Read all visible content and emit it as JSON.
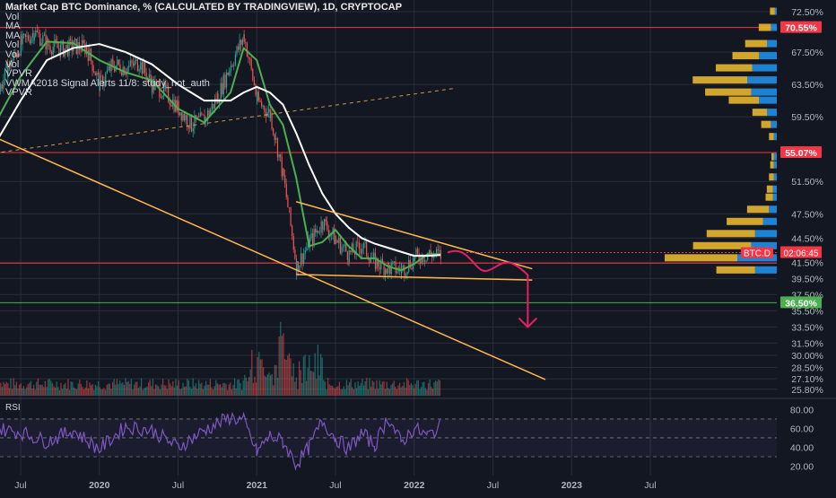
{
  "chart_data": {
    "type": "line",
    "title": "Market Cap BTC Dominance, % (CALCULATED BY TRADINGVIEW), 1D, CRYPTOCAP",
    "legend_rows": [
      "Vol",
      "MA",
      "MA",
      "Vol",
      "Vol",
      "Vol",
      "VPVR",
      "VWMA2018 Signal Alerts 11/8: study_not_auth",
      "VPVR"
    ],
    "price_axis": {
      "ticks": [
        "72.50%",
        "67.50%",
        "63.50%",
        "59.50%",
        "51.50%",
        "47.50%",
        "44.50%",
        "41.50%",
        "39.50%",
        "37.50%",
        "35.50%",
        "33.50%",
        "31.50%",
        "30.00%",
        "28.50%",
        "27.10%",
        "25.80%"
      ],
      "ylim": [
        25.0,
        73.5
      ]
    },
    "time_axis": {
      "labels": [
        "Jul",
        "2020",
        "Jul",
        "2021",
        "Jul",
        "2022",
        "Jul",
        "2023",
        "Jul"
      ]
    },
    "price_badges": [
      {
        "text": "70.55%",
        "value": 70.55,
        "color": "#f23645"
      },
      {
        "text": "55.07%",
        "value": 55.07,
        "color": "#f23645"
      },
      {
        "text": "36.50%",
        "value": 36.5,
        "color": "#4caf50"
      }
    ],
    "last_price_label": {
      "symbol": "BTC.D",
      "countdown": "02:06:45",
      "color": "#f23645"
    },
    "horizontal_levels": [
      {
        "value": 70.55,
        "color": "#f23645"
      },
      {
        "value": 55.07,
        "color": "#f23645"
      },
      {
        "value": 41.4,
        "color": "#f23645"
      },
      {
        "value": 36.5,
        "color": "#4caf50"
      }
    ],
    "series": [
      {
        "kind": "candles",
        "x": [
          "2019-06",
          "2019-07",
          "2019-08",
          "2019-09",
          "2019-10",
          "2019-11",
          "2019-12",
          "2020-01",
          "2020-02",
          "2020-03",
          "2020-04",
          "2020-05",
          "2020-06",
          "2020-07",
          "2020-08",
          "2020-09",
          "2020-10",
          "2020-11",
          "2020-12",
          "2021-01",
          "2021-02",
          "2021-03",
          "2021-04",
          "2021-05",
          "2021-06",
          "2021-07",
          "2021-08",
          "2021-09",
          "2021-10",
          "2021-11",
          "2021-12",
          "2022-01",
          "2022-02",
          "2022-03",
          "2022-04"
        ],
        "close": [
          61.5,
          65.5,
          68.5,
          70.0,
          68.5,
          67.8,
          68.2,
          68.0,
          63.5,
          66.0,
          65.5,
          66.2,
          63.5,
          62.5,
          60.5,
          58.5,
          59.2,
          62.0,
          66.0,
          69.5,
          61.5,
          59.8,
          52.0,
          41.0,
          44.0,
          46.5,
          44.2,
          42.5,
          43.5,
          41.5,
          40.8,
          40.5,
          42.0,
          42.6,
          42.3
        ]
      },
      {
        "kind": "ma-fast",
        "color": "#4caf50",
        "x": [
          "2019-06",
          "2019-08",
          "2019-10",
          "2019-12",
          "2020-02",
          "2020-04",
          "2020-06",
          "2020-08",
          "2020-10",
          "2020-12",
          "2021-01",
          "2021-02",
          "2021-03",
          "2021-04",
          "2021-05",
          "2021-06",
          "2021-07",
          "2021-08",
          "2021-09",
          "2021-10",
          "2021-11",
          "2021-12",
          "2022-01",
          "2022-02",
          "2022-03",
          "2022-04"
        ],
        "values": [
          58.5,
          64.5,
          68.8,
          68.6,
          66.5,
          65.0,
          64.0,
          60.5,
          58.8,
          62.5,
          68.0,
          66.5,
          61.0,
          58.5,
          52.0,
          43.5,
          44.0,
          45.5,
          43.5,
          42.0,
          42.0,
          41.0,
          40.5,
          41.3,
          42.5,
          42.5
        ]
      },
      {
        "kind": "ma-slow",
        "color": "#ffffff",
        "x": [
          "2019-06",
          "2019-08",
          "2019-10",
          "2019-12",
          "2020-02",
          "2020-04",
          "2020-06",
          "2020-08",
          "2020-10",
          "2020-12",
          "2021-01",
          "2021-02",
          "2021-03",
          "2021-04",
          "2021-05",
          "2021-06",
          "2021-07",
          "2021-08",
          "2021-09",
          "2021-10",
          "2021-11",
          "2021-12",
          "2022-01",
          "2022-02",
          "2022-03",
          "2022-04"
        ],
        "values": [
          56.0,
          61.5,
          66.5,
          68.0,
          68.5,
          67.5,
          66.0,
          63.5,
          61.5,
          61.5,
          62.5,
          63.2,
          62.5,
          61.0,
          57.5,
          53.5,
          50.0,
          47.5,
          45.8,
          44.5,
          43.8,
          43.3,
          42.8,
          42.3,
          42.3,
          42.4
        ]
      }
    ],
    "trendlines": [
      {
        "from": [
          "2021-05",
          49.0
        ],
        "to": [
          "2022-11",
          40.7
        ],
        "color": "#ffb74d"
      },
      {
        "from": [
          "2021-05",
          40.0
        ],
        "to": [
          "2022-11",
          39.3
        ],
        "color": "#ffb74d"
      },
      {
        "from": [
          "2019-06",
          57.0
        ],
        "to": [
          "2022-12",
          27.0
        ],
        "color": "#ffb74d"
      },
      {
        "from": [
          "2019-06",
          55.0
        ],
        "to": [
          "2022-05",
          63.0
        ],
        "color": "#ffb74d",
        "dashed": true
      }
    ],
    "projection": {
      "color": "#e91e63",
      "target": [
        "2022-11",
        33.5
      ]
    },
    "volume_profile": {
      "price_bins": [
        72.0,
        70.0,
        68.0,
        66.5,
        65.0,
        63.5,
        62.0,
        61.0,
        59.5,
        58.0,
        56.5,
        54.0,
        53.0,
        51.5,
        50.0,
        49.0,
        47.5,
        46.0,
        44.5,
        43.0,
        41.5,
        40.0
      ],
      "buy": [
        4,
        10,
        18,
        22,
        30,
        45,
        38,
        25,
        12,
        8,
        4,
        2,
        3,
        4,
        5,
        6,
        18,
        30,
        40,
        48,
        60,
        32
      ],
      "sell": [
        2,
        6,
        10,
        18,
        25,
        30,
        26,
        18,
        10,
        6,
        3,
        3,
        3,
        3,
        4,
        4,
        8,
        14,
        22,
        26,
        40,
        22
      ]
    },
    "rsi": {
      "label": "RSI",
      "ticks": [
        "80.00",
        "60.00",
        "40.00",
        "20.00"
      ],
      "ylim": [
        10,
        88
      ],
      "overbought": 70,
      "oversold": 30,
      "x": [
        "2019-06",
        "2019-08",
        "2019-10",
        "2019-12",
        "2020-02",
        "2020-04",
        "2020-06",
        "2020-08",
        "2020-10",
        "2020-12",
        "2021-01",
        "2021-02",
        "2021-03",
        "2021-04",
        "2021-05",
        "2021-06",
        "2021-07",
        "2021-08",
        "2021-09",
        "2021-10",
        "2021-11",
        "2021-12",
        "2022-01",
        "2022-02",
        "2022-03",
        "2022-04"
      ],
      "values": [
        60,
        56,
        46,
        58,
        38,
        62,
        58,
        40,
        58,
        72,
        68,
        35,
        52,
        46,
        22,
        40,
        68,
        50,
        38,
        55,
        42,
        72,
        45,
        60,
        52,
        62
      ]
    },
    "colors": {
      "background": "#131722",
      "up": "#26a69a",
      "down": "#ef5350",
      "rsi": "#7e57c2"
    }
  }
}
